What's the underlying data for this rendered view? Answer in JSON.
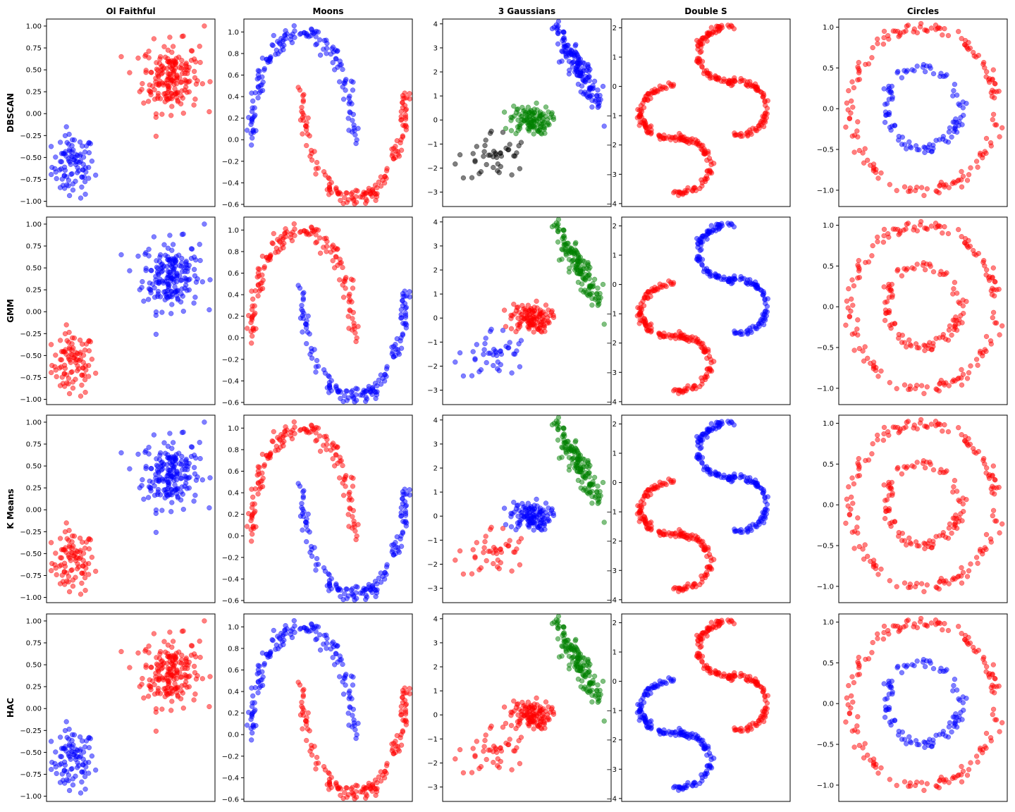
{
  "figure": {
    "columns": [
      "Ol Faithful",
      "Moons",
      "3 Gaussians",
      "Double S",
      "Circles"
    ],
    "rows": [
      "DBSCAN",
      "GMM",
      "K Means",
      "HAC"
    ]
  },
  "colors": {
    "red": "#ff0000",
    "blue": "#0000ff",
    "green": "#008000",
    "black": "#000000"
  },
  "chart_data": {
    "type": "scatter",
    "panels": [
      {
        "dataset": "Ol Faithful",
        "xlim": [
          -0.85,
          1.05
        ],
        "ylim": [
          -1.06,
          1.08
        ],
        "yticks": [
          -1.0,
          -0.75,
          -0.5,
          -0.25,
          0.0,
          0.25,
          0.5,
          0.75,
          1.0
        ],
        "ytick_labels": [
          "−1.00",
          "−0.75",
          "−0.50",
          "−0.25",
          "0.00",
          "0.25",
          "0.50",
          "0.75",
          "1.00"
        ]
      },
      {
        "dataset": "Moons",
        "xlim": [
          -1.15,
          2.15
        ],
        "ylim": [
          -0.62,
          1.12
        ],
        "yticks": [
          -0.6,
          -0.4,
          -0.2,
          0.0,
          0.2,
          0.4,
          0.6,
          0.8,
          1.0
        ],
        "ytick_labels": [
          "−0.6",
          "−0.4",
          "−0.2",
          "0.0",
          "0.2",
          "0.4",
          "0.6",
          "0.8",
          "1.0"
        ]
      },
      {
        "dataset": "3 Gaussians",
        "xlim": [
          -3.9,
          3.8
        ],
        "ylim": [
          -3.6,
          4.2
        ],
        "yticks": [
          -3,
          -2,
          -1,
          0,
          1,
          2,
          3,
          4
        ],
        "ytick_labels": [
          "−3",
          "−2",
          "−1",
          "0",
          "1",
          "2",
          "3",
          "4"
        ]
      },
      {
        "dataset": "Double S",
        "xlim": [
          -1.1,
          1.1
        ],
        "ylim": [
          -4.1,
          2.3
        ],
        "yticks": [
          -4,
          -3,
          -2,
          -1,
          0,
          1,
          2
        ],
        "ytick_labels": [
          "−4",
          "−3",
          "−2",
          "−1",
          "0",
          "1",
          "2"
        ]
      },
      {
        "dataset": "Circles",
        "xlim": [
          -1.15,
          1.15
        ],
        "ylim": [
          -1.2,
          1.1
        ],
        "yticks": [
          -1.0,
          -0.5,
          0.0,
          0.5,
          1.0
        ],
        "ytick_labels": [
          "−1.0",
          "−0.5",
          "0.0",
          "0.5",
          "1.0"
        ]
      }
    ],
    "clusters": {
      "Ol Faithful": {
        "groups": [
          "low",
          "high"
        ],
        "DBSCAN": {
          "low": "blue",
          "high": "red"
        },
        "GMM": {
          "low": "red",
          "high": "blue"
        },
        "K Means": {
          "low": "red",
          "high": "blue"
        },
        "HAC": {
          "low": "blue",
          "high": "red"
        }
      },
      "Moons": {
        "groups": [
          "upper",
          "lower"
        ],
        "DBSCAN": {
          "upper": "blue",
          "lower": "red"
        },
        "GMM": {
          "upper": "red",
          "lower": "blue"
        },
        "K Means": {
          "upper": "red",
          "lower": "blue"
        },
        "HAC": {
          "upper": "blue",
          "lower": "red"
        }
      },
      "3 Gaussians": {
        "groups": [
          "A",
          "B",
          "C"
        ],
        "DBSCAN": {
          "A": "black",
          "B": "green",
          "C": "blue"
        },
        "GMM": {
          "A": "blue",
          "B": "red",
          "C": "green"
        },
        "K Means": {
          "A": "red",
          "B": "blue",
          "C": "green"
        },
        "HAC": {
          "A": "red",
          "B": "red",
          "C": "green"
        }
      },
      "Double S": {
        "groups": [
          "S1",
          "S2"
        ],
        "DBSCAN": {
          "S1": "red",
          "S2": "red"
        },
        "GMM": {
          "S1": "red",
          "S2": "blue"
        },
        "K Means": {
          "S1": "red",
          "S2": "blue"
        },
        "HAC": {
          "S1": "blue",
          "S2": "red"
        }
      },
      "Circles": {
        "groups": [
          "outer",
          "inner"
        ],
        "DBSCAN": {
          "outer": "red",
          "inner": "blue"
        },
        "GMM": {
          "outer": "red",
          "inner": "red"
        },
        "K Means": {
          "outer": "red",
          "inner": "red"
        },
        "HAC": {
          "outer": "red",
          "inner": "blue"
        }
      }
    }
  }
}
